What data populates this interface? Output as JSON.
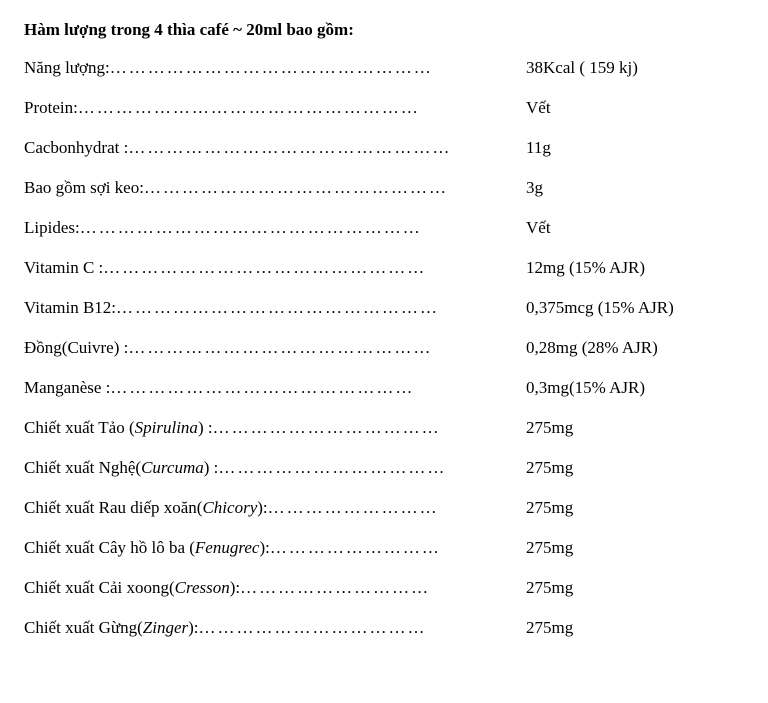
{
  "title": "Hàm lượng trong 4 thìa café ~ 20ml bao gồm:",
  "rows": [
    {
      "label_plain": "Năng lượng: ",
      "label_italic": "",
      "value": "38Kcal ( 159 kj)",
      "dots": "……………………………………………"
    },
    {
      "label_plain": "Protein: ",
      "label_italic": "",
      "value": "Vết",
      "dots": "………………………………………………"
    },
    {
      "label_plain": "Cacbonhydrat :",
      "label_italic": "",
      "value": "11g",
      "dots": "……………………………………………"
    },
    {
      "label_plain": "Bao gồm sợi keo:",
      "label_italic": "",
      "value": " 3g",
      "dots": "………………………………………… "
    },
    {
      "label_plain": "Lipides:  ",
      "label_italic": "",
      "value": "Vết",
      "dots": "………………………………………………"
    },
    {
      "label_plain": "Vitamin C : ",
      "label_italic": "",
      "value": "12mg  (15% AJR)",
      "dots": "……………………………………………"
    },
    {
      "label_plain": "Vitamin B12:",
      "label_italic": "",
      "value": "0,375mcg  (15% AJR)",
      "dots": "……………………………………………"
    },
    {
      "label_plain": "Đồng(Cuivre) :",
      "label_italic": "",
      "value": "0,28mg  (28% AJR)",
      "dots": "…………………………………………"
    },
    {
      "label_plain": "Manganèse  : ",
      "label_italic": "",
      "value": "0,3mg(15%  AJR)",
      "dots": "…………………………………………"
    },
    {
      "label_plain": "Chiết xuất Tảo (",
      "label_italic": "Spirulina",
      "label_after": ") :",
      "value": "275mg",
      "dots": "………………………………"
    },
    {
      "label_plain": "Chiết xuất Nghệ(",
      "label_italic": "Curcuma",
      "label_after": ") :",
      "value": "275mg",
      "dots": "………………………………"
    },
    {
      "label_plain": "Chiết xuất Rau diếp xoăn(",
      "label_italic": "Chicory",
      "label_after": "): ",
      "value": "275mg",
      "dots": "………………………"
    },
    {
      "label_plain": "Chiết xuất Cây hồ lô ba (",
      "label_italic": "Fenugrec",
      "label_after": "):",
      "value": "275mg",
      "dots": "………………………"
    },
    {
      "label_plain": "Chiết xuất  Cải xoong(",
      "label_italic": "Cresson",
      "label_after": "):",
      "value": "275mg",
      "dots": "…………………………"
    },
    {
      "label_plain": "Chiết xuất Gừng(",
      "label_italic": "Zinger",
      "label_after": "): ",
      "value": "275mg",
      "dots": "………………………………"
    }
  ]
}
